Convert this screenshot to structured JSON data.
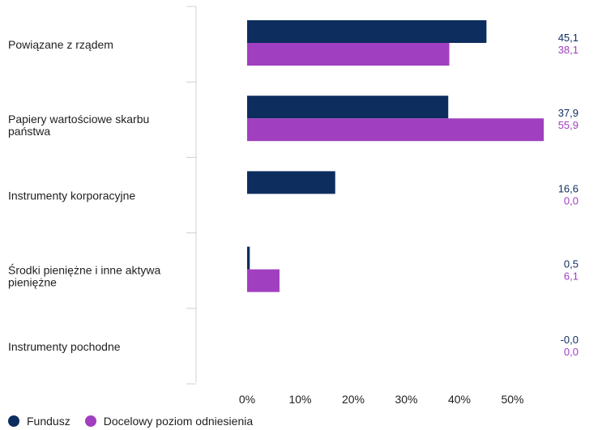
{
  "chart_data": {
    "type": "bar",
    "orientation": "horizontal",
    "categories": [
      [
        "Powiązane z rządem"
      ],
      [
        "Papiery wartościowe skarbu",
        "państwa"
      ],
      [
        "Instrumenty korporacyjne"
      ],
      [
        "Środki pieniężne i inne aktywa",
        "pieniężne"
      ],
      [
        "Instrumenty pochodne"
      ]
    ],
    "series": [
      {
        "name": "Fundusz",
        "color": "#0d2d5e",
        "values": [
          45.1,
          37.9,
          16.6,
          0.5,
          -0.0
        ],
        "labels": [
          "45,1",
          "37,9",
          "16,6",
          "0,5",
          "-0,0"
        ]
      },
      {
        "name": "Docelowy poziom odniesienia",
        "color": "#a03fbf",
        "values": [
          38.1,
          55.9,
          0.0,
          6.1,
          0.0
        ],
        "labels": [
          "38,1",
          "55,9",
          "0,0",
          "6,1",
          "0,0"
        ]
      }
    ],
    "x_ticks": [
      "0%",
      "10%",
      "20%",
      "30%",
      "40%",
      "50%"
    ],
    "xlim": [
      0,
      60
    ],
    "grid": false,
    "legend_position": "bottom-left"
  }
}
